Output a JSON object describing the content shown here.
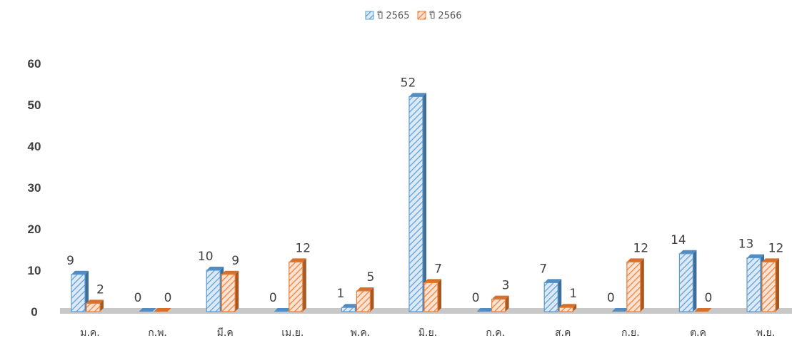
{
  "chart_data": {
    "type": "bar",
    "title": "",
    "xlabel": "",
    "ylabel": "",
    "ylim": [
      0,
      60
    ],
    "yticks": [
      0,
      10,
      20,
      30,
      40,
      50,
      60
    ],
    "grid": false,
    "legend_position": "top-center",
    "categories": [
      "ม.ค.",
      "ก.พ.",
      "มี.ค",
      "เม.ย.",
      "พ.ค.",
      "มิ.ย.",
      "ก.ค.",
      "ส.ค",
      "ก.ย.",
      "ต.ค",
      "พ.ย."
    ],
    "series": [
      {
        "name": "ปี 2565",
        "color": "#5b9bd5",
        "values": [
          9,
          0,
          10,
          0,
          1,
          52,
          0,
          7,
          0,
          14,
          13
        ]
      },
      {
        "name": "ปี 2566",
        "color": "#ed7d31",
        "values": [
          2,
          0,
          9,
          12,
          5,
          7,
          3,
          1,
          12,
          0,
          12
        ]
      }
    ]
  }
}
